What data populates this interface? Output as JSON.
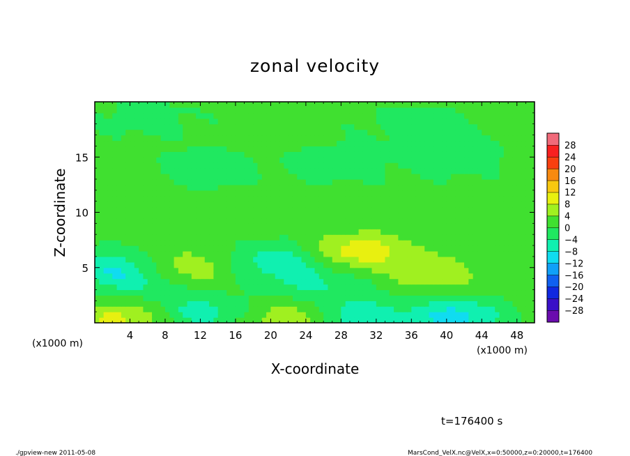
{
  "chart_data": {
    "type": "heatmap",
    "title": "zonal velocity",
    "xlabel": "X-coordinate",
    "ylabel": "Z-coordinate",
    "x_unit_left": "(x1000 m)",
    "x_unit_right": "(x1000 m)",
    "xlim": [
      0,
      50
    ],
    "ylim": [
      0,
      20
    ],
    "x_ticks": [
      4,
      8,
      12,
      16,
      20,
      24,
      28,
      32,
      36,
      40,
      44,
      48
    ],
    "y_ticks": [
      5,
      10,
      15
    ],
    "colorbar": {
      "levels": [
        -28,
        -24,
        -20,
        -16,
        -12,
        -8,
        -4,
        0,
        4,
        8,
        12,
        16,
        20,
        24,
        28
      ],
      "labels": [
        "28",
        "24",
        "20",
        "16",
        "12",
        "8",
        "4",
        "0",
        "−4",
        "−8",
        "−12",
        "−16",
        "−20",
        "−24",
        "−28"
      ],
      "colors": [
        "#6a0cae",
        "#3a10c8",
        "#1028e0",
        "#1060f0",
        "#10a0f8",
        "#10dcf0",
        "#10f0b0",
        "#20e860",
        "#40e030",
        "#a0f020",
        "#e8f010",
        "#f8c810",
        "#f88a10",
        "#f84010",
        "#f82020",
        "#f06a7a"
      ]
    },
    "field": {
      "background_value": 1,
      "features": [
        {
          "x": 3,
          "z": 0.4,
          "value": 9
        },
        {
          "x": 22.5,
          "z": 0.3,
          "value": 8
        },
        {
          "x": 30,
          "z": 0.6,
          "value": -8
        },
        {
          "x": 41,
          "z": 0.6,
          "value": -10
        },
        {
          "x": 12,
          "z": 1.0,
          "value": -6
        },
        {
          "x": 2,
          "z": 5.0,
          "value": -6
        },
        {
          "x": 5,
          "z": 3.8,
          "value": -4
        },
        {
          "x": 10,
          "z": 5.0,
          "value": 7
        },
        {
          "x": 21,
          "z": 5.5,
          "value": -7
        },
        {
          "x": 29,
          "z": 6.5,
          "value": 8
        },
        {
          "x": 33,
          "z": 6.5,
          "value": 5
        },
        {
          "x": 39,
          "z": 4.5,
          "value": 7
        },
        {
          "x": 25,
          "z": 3.5,
          "value": -4
        },
        {
          "x": 13,
          "z": 14.0,
          "value": -3
        },
        {
          "x": 28,
          "z": 14.5,
          "value": -3
        },
        {
          "x": 41,
          "z": 15.0,
          "value": -3
        },
        {
          "x": 6,
          "z": 18.5,
          "value": -2
        },
        {
          "x": 36,
          "z": 18.0,
          "value": -2
        },
        {
          "x": 20,
          "z": 10.5,
          "value": 3
        },
        {
          "x": 45,
          "z": 9.0,
          "value": 3
        }
      ]
    },
    "time_label": "t=176400 s"
  },
  "footer": {
    "left": "./gpview-new  2011-05-08",
    "right": "MarsCond_VelX.nc@VelX,x=0:50000,z=0:20000,t=176400"
  }
}
